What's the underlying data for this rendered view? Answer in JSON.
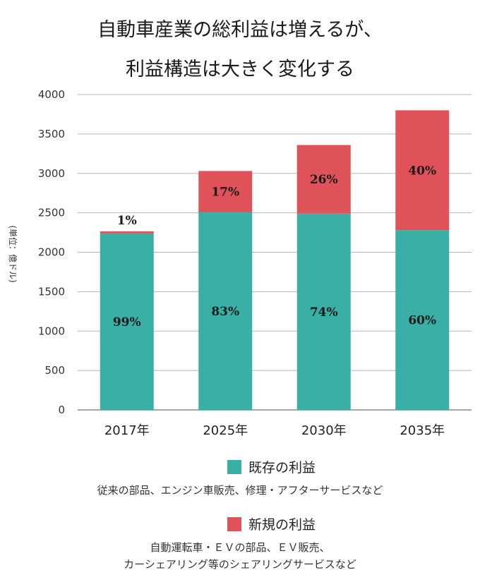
{
  "title_lines": [
    "自動車産業の総利益は増えるが、",
    "利益構造は大きく変化する"
  ],
  "chart_data": {
    "type": "bar",
    "stacked": true,
    "categories": [
      "2017年",
      "2025年",
      "2030年",
      "2035年"
    ],
    "ylabel": "(単位：億ドル)",
    "ylim": [
      0,
      4000
    ],
    "yticks": [
      0,
      500,
      1000,
      1500,
      2000,
      2500,
      3000,
      3500,
      4000
    ],
    "grid": true,
    "series": [
      {
        "name": "既存の利益",
        "color": "#3aafa5",
        "values": [
          2240,
          2510,
          2490,
          2280
        ],
        "labels": [
          "99%",
          "83%",
          "74%",
          "60%"
        ]
      },
      {
        "name": "新規の利益",
        "color": "#e0525a",
        "values": [
          25,
          520,
          870,
          1520
        ],
        "labels": [
          "1%",
          "17%",
          "26%",
          "40%"
        ]
      }
    ]
  },
  "legend": [
    {
      "label": "既存の利益",
      "color": "#3aafa5",
      "desc": [
        "従来の部品、エンジン車販売、修理・アフターサービスなど"
      ]
    },
    {
      "label": "新規の利益",
      "color": "#e0525a",
      "desc": [
        "自動運転車・ＥＶの部品、ＥＶ販売、",
        "カーシェアリング等のシェアリングサービスなど"
      ]
    }
  ]
}
